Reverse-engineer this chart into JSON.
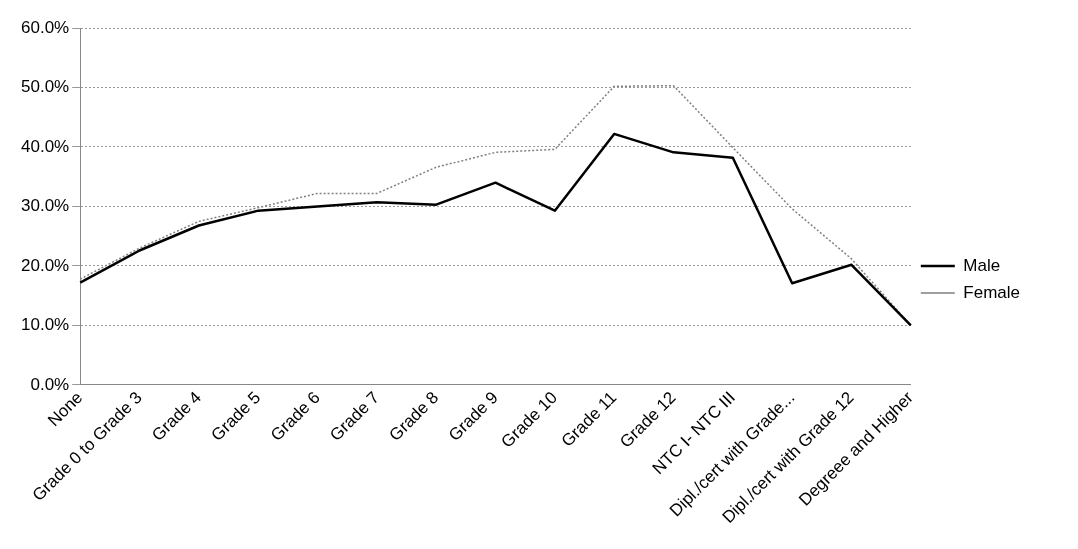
{
  "chart_data": {
    "type": "line",
    "categories": [
      "None",
      "Grade 0 to Grade 3",
      "Grade 4",
      "Grade 5",
      "Grade 6",
      "Grade 7",
      "Grade 8",
      "Grade 9",
      "Grade 10",
      "Grade 11",
      "Grade 12",
      "NTC I- NTC III",
      "Dipl./cert with Grade...",
      "Dipl./cert with Grade 12",
      "Degreee and Higher"
    ],
    "series": [
      {
        "name": "Male",
        "color": "#000000",
        "line_style": "solid",
        "values": [
          17.2,
          22.6,
          26.8,
          29.3,
          30.0,
          30.7,
          30.3,
          34.0,
          29.3,
          42.2,
          39.1,
          38.2,
          17.1,
          20.2,
          10.0
        ]
      },
      {
        "name": "Female",
        "color": "#808080",
        "line_style": "dotted",
        "values": [
          17.8,
          23.0,
          27.5,
          29.8,
          32.2,
          32.2,
          36.6,
          39.1,
          39.6,
          50.2,
          50.3,
          39.9,
          29.6,
          21.2,
          10.0
        ]
      }
    ],
    "ylim": [
      0,
      60
    ],
    "yticks": [
      {
        "value": 0,
        "label": "0.0%"
      },
      {
        "value": 10,
        "label": "10.0%"
      },
      {
        "value": 20,
        "label": "20.0%"
      },
      {
        "value": 30,
        "label": "30.0%"
      },
      {
        "value": 40,
        "label": "40.0%"
      },
      {
        "value": 50,
        "label": "50.0%"
      },
      {
        "value": 60,
        "label": "60.0%"
      }
    ],
    "grid": "y",
    "legend": "right",
    "marker": "none"
  }
}
